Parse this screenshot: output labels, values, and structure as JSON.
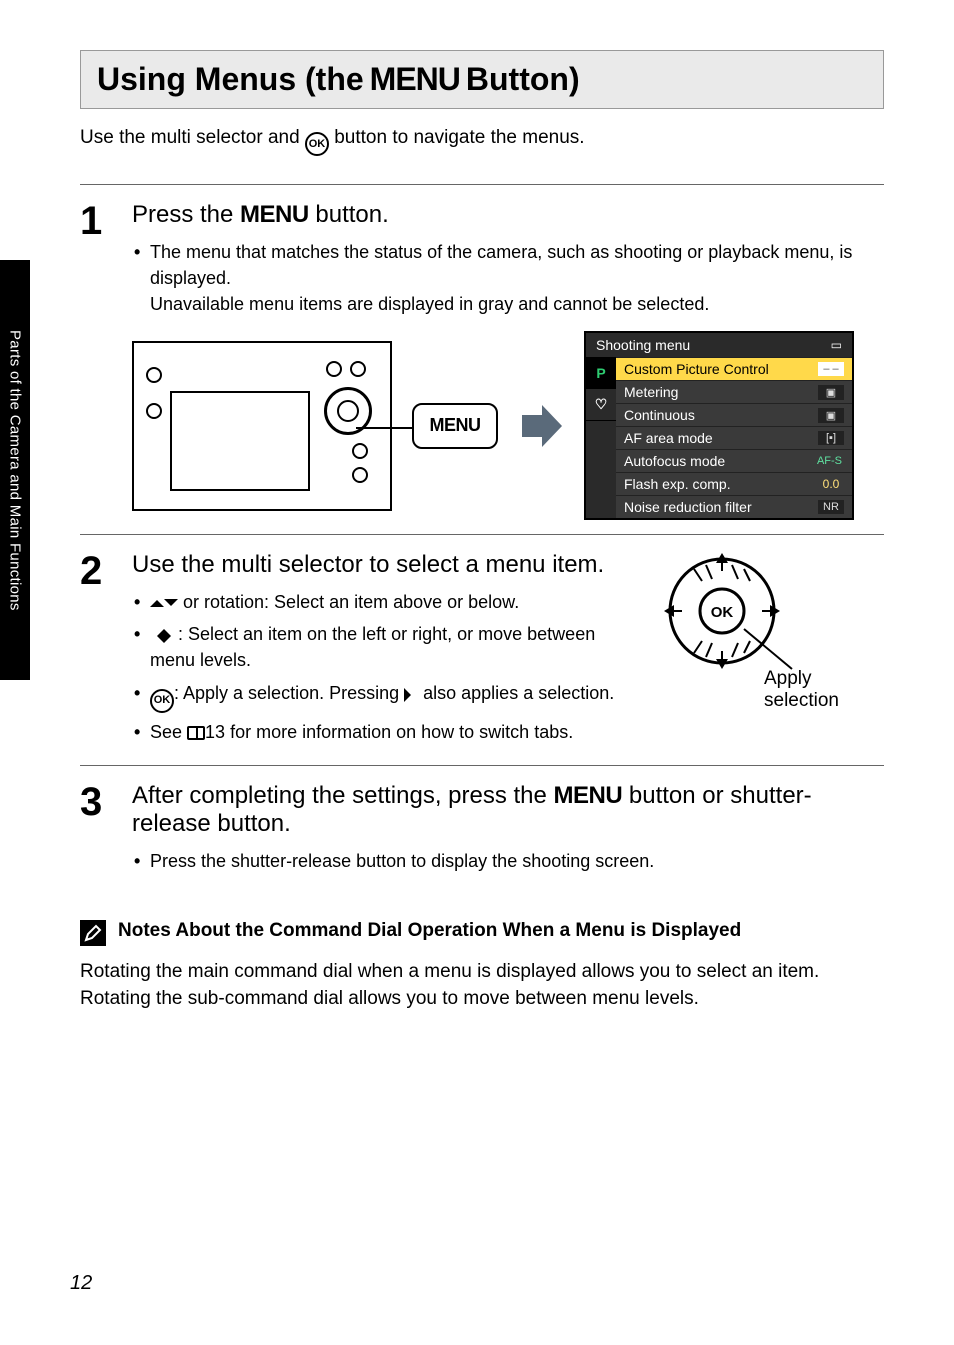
{
  "sidebar_label": "Parts of the Camera and Main Functions",
  "page_number": "12",
  "heading": {
    "pre": "Using Menus (the ",
    "menu_word": "MENU",
    "post": " Button)"
  },
  "intro": {
    "pre": "Use the multi selector and ",
    "post": " button to navigate the menus."
  },
  "steps": {
    "one": {
      "num": "1",
      "title_pre": "Press the ",
      "title_menu": "MENU",
      "title_post": " button.",
      "bullet1": "The menu that matches the status of the camera, such as shooting or playback menu, is displayed.",
      "bullet1_line2": "Unavailable menu items are displayed in gray and cannot be selected.",
      "callout": "MENU"
    },
    "two": {
      "num": "2",
      "title": "Use the multi selector to select a menu item.",
      "b1_post": " or rotation: Select an item above or below.",
      "b2_post": ": Select an item on the left or right, or move between menu levels.",
      "b3_pre_ok_post": ": Apply a selection. Pressing ",
      "b3_tail": " also applies a selection.",
      "b4_pre": "See ",
      "b4_ref": "13",
      "b4_post": " for more information on how to switch tabs.",
      "apply_label_1": "Apply",
      "apply_label_2": "selection"
    },
    "three": {
      "num": "3",
      "title_pre": "After completing the settings, press the ",
      "title_menu": "MENU",
      "title_post": " button or shutter-release button.",
      "bullet1": "Press the shutter-release button to display the shooting screen."
    }
  },
  "menu_shot": {
    "title": "Shooting menu",
    "tabs": {
      "p": "P",
      "wrench": "♡"
    },
    "rows": [
      {
        "label": "Custom Picture Control",
        "val": "– –",
        "sel": true
      },
      {
        "label": "Metering",
        "val": "▣"
      },
      {
        "label": "Continuous",
        "val": "▣"
      },
      {
        "label": "AF area mode",
        "val": "[▪]"
      },
      {
        "label": "Autofocus mode",
        "val": "AF-S",
        "green": true
      },
      {
        "label": "Flash exp. comp.",
        "val": "0.0",
        "yellow": true
      },
      {
        "label": "Noise reduction filter",
        "val": "NR"
      }
    ]
  },
  "notes": {
    "heading": "Notes About the Command Dial Operation When a Menu is Displayed",
    "body": "Rotating the main command dial when a menu is displayed allows you to select an item. Rotating the sub-command dial allows you to move between menu levels."
  },
  "colors": {
    "heading_bg": "#eaeaea",
    "selected_row": "#ffd94a",
    "green_text": "#5fe0a0",
    "yellow_text": "#ffe07a"
  }
}
